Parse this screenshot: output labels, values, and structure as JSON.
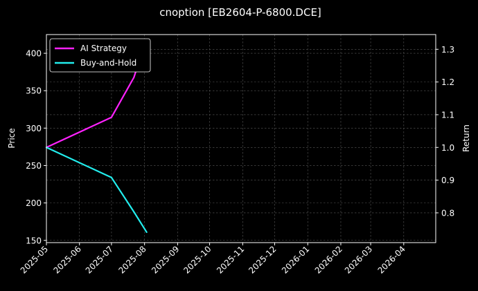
{
  "chart_data": {
    "type": "line",
    "title": "cnoption [EB2604-P-6800.DCE]",
    "ylabel": "Price",
    "y2label": "Return",
    "x_ticks": [
      "2025-05",
      "2025-06",
      "2025-07",
      "2025-08",
      "2025-09",
      "2025-10",
      "2025-11",
      "2025-12",
      "2026-01",
      "2026-02",
      "2026-03",
      "2026-04"
    ],
    "xlim": [
      "2025-05-01",
      "2026-05-01"
    ],
    "ylim": [
      147,
      425
    ],
    "y_ticks": [
      150,
      200,
      250,
      300,
      350,
      400
    ],
    "y2lim": [
      0.709,
      1.345
    ],
    "y2_ticks": [
      0.8,
      0.9,
      1.0,
      1.1,
      1.2,
      1.3
    ],
    "grid": true,
    "legend_position": "top-left",
    "series": [
      {
        "name": "AI Strategy",
        "color": "#ff22ff",
        "axis": "right",
        "points": [
          {
            "x": "2025-05-01",
            "y": 1.0
          },
          {
            "x": "2025-07-01",
            "y": 1.092
          },
          {
            "x": "2025-07-22",
            "y": 1.214
          },
          {
            "x": "2025-08-01",
            "y": 1.315
          }
        ]
      },
      {
        "name": "Buy-and-Hold",
        "color": "#22eeee",
        "axis": "right",
        "points": [
          {
            "x": "2025-05-01",
            "y": 1.0
          },
          {
            "x": "2025-07-01",
            "y": 0.908
          },
          {
            "x": "2025-07-22",
            "y": 0.803
          },
          {
            "x": "2025-08-03",
            "y": 0.741
          }
        ]
      }
    ]
  }
}
